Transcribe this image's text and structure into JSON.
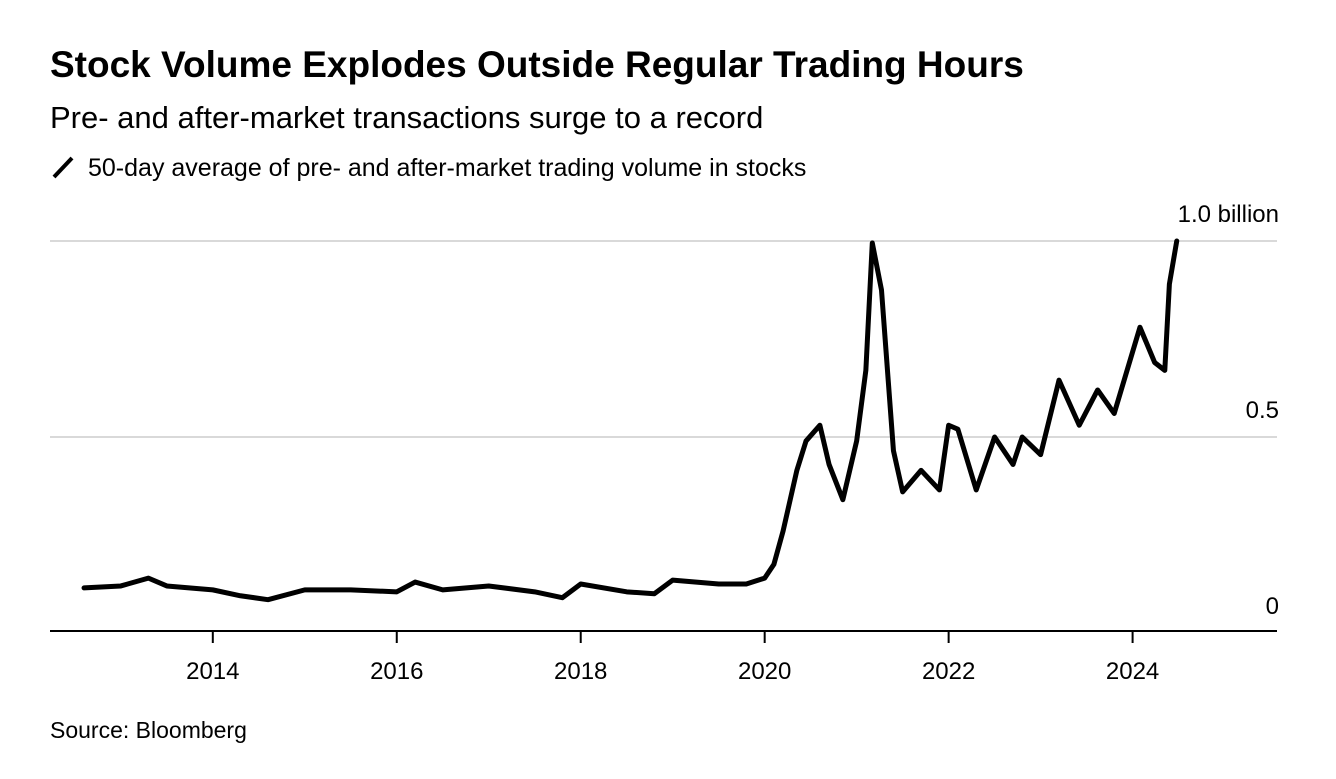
{
  "chart_data": {
    "type": "line",
    "title": "Stock Volume Explodes Outside Regular Trading Hours",
    "subtitle": "Pre- and after-market transactions surge to a record",
    "source": "Source: Bloomberg",
    "x": [
      2012.6,
      2013.0,
      2013.3,
      2013.5,
      2014.0,
      2014.3,
      2014.6,
      2015.0,
      2015.5,
      2016.0,
      2016.2,
      2016.5,
      2017.0,
      2017.5,
      2017.8,
      2018.0,
      2018.5,
      2018.8,
      2019.0,
      2019.5,
      2019.8,
      2020.0,
      2020.1,
      2020.2,
      2020.35,
      2020.45,
      2020.6,
      2020.7,
      2020.85,
      2021.0,
      2021.1,
      2021.17,
      2021.27,
      2021.4,
      2021.5,
      2021.7,
      2021.9,
      2022.0,
      2022.1,
      2022.3,
      2022.5,
      2022.7,
      2022.8,
      2023.0,
      2023.2,
      2023.42,
      2023.62,
      2023.8,
      2024.08,
      2024.24,
      2024.35,
      2024.4,
      2024.48
    ],
    "series": [
      {
        "name": "50-day average of pre- and after-market trading volume in stocks",
        "color": "#000000",
        "values": [
          0.115,
          0.12,
          0.14,
          0.12,
          0.11,
          0.095,
          0.085,
          0.11,
          0.11,
          0.105,
          0.13,
          0.11,
          0.12,
          0.105,
          0.09,
          0.125,
          0.105,
          0.1,
          0.135,
          0.125,
          0.125,
          0.14,
          0.175,
          0.26,
          0.415,
          0.49,
          0.53,
          0.43,
          0.34,
          0.49,
          0.67,
          0.995,
          0.875,
          0.465,
          0.36,
          0.415,
          0.365,
          0.53,
          0.52,
          0.365,
          0.5,
          0.43,
          0.5,
          0.455,
          0.645,
          0.53,
          0.62,
          0.56,
          0.78,
          0.69,
          0.67,
          0.89,
          1.0
        ]
      }
    ],
    "xlim": [
      2012.23,
      2025.57
    ],
    "xticks": [
      2014,
      2016,
      2018,
      2020,
      2022,
      2024
    ],
    "ylim": [
      0,
      1
    ],
    "yticks": [
      0,
      0.5,
      {
        "value": 1,
        "label": "1.0 billion"
      }
    ],
    "grid": true
  }
}
